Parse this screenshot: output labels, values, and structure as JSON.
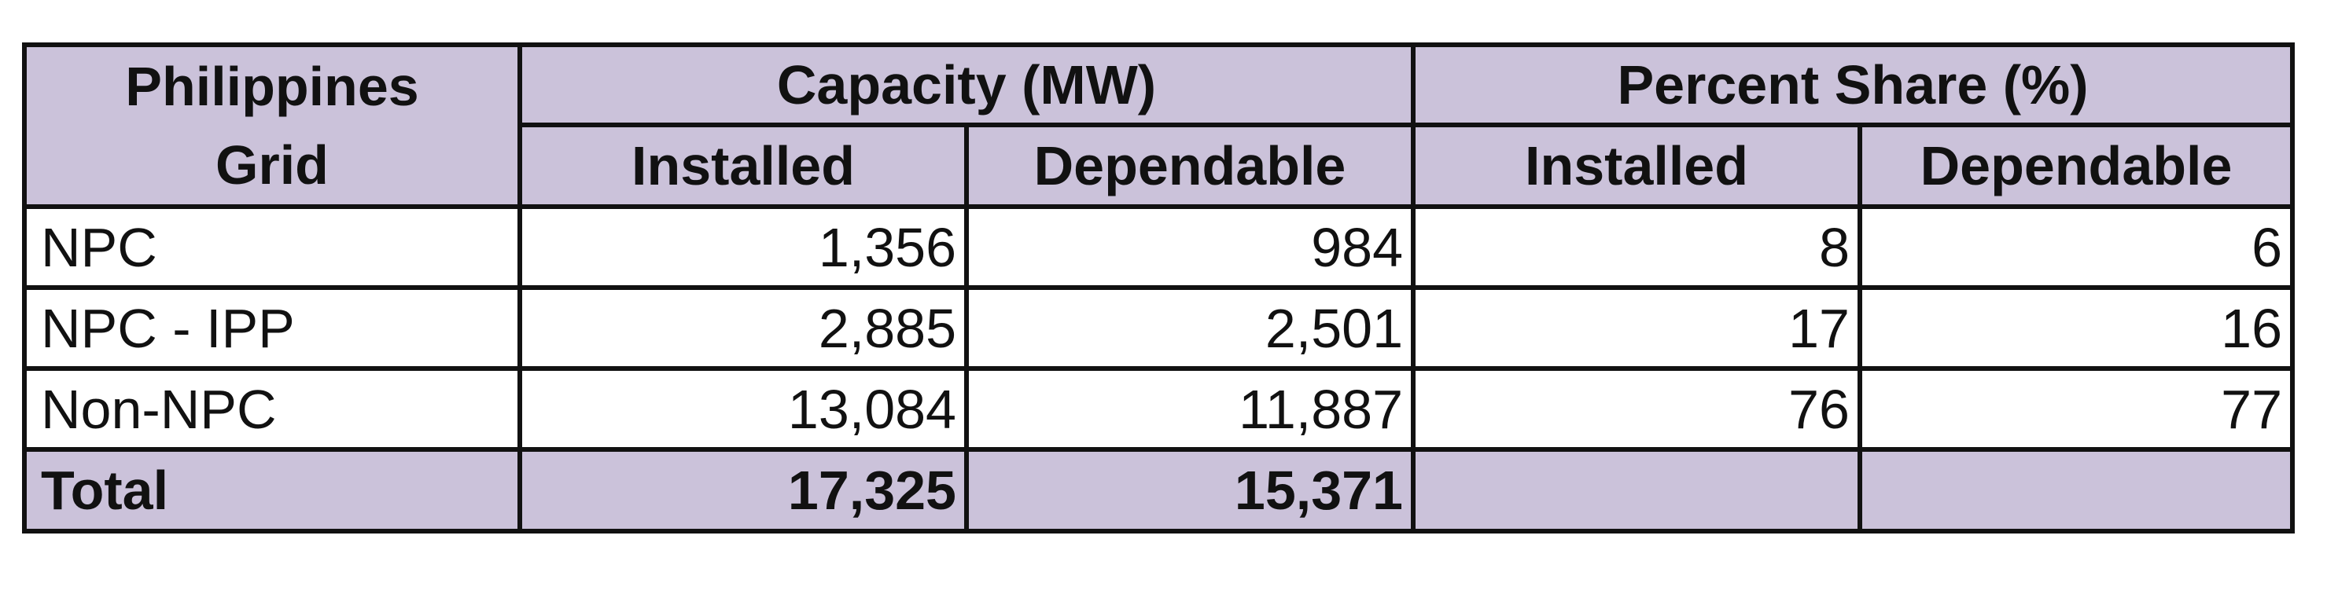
{
  "table": {
    "corner_label_line1": "Philippines",
    "corner_label_line2": "Grid",
    "group_headers": {
      "capacity": "Capacity (MW)",
      "percent_share": "Percent Share (%)"
    },
    "sub_headers": {
      "capacity_installed": "Installed",
      "capacity_dependable": "Dependable",
      "share_installed": "Installed",
      "share_dependable": "Dependable"
    },
    "rows": [
      {
        "label": "NPC",
        "capacity_installed": "1,356",
        "capacity_dependable": "984",
        "share_installed": "8",
        "share_dependable": "6"
      },
      {
        "label": "NPC - IPP",
        "capacity_installed": "2,885",
        "capacity_dependable": "2,501",
        "share_installed": "17",
        "share_dependable": "16"
      },
      {
        "label": "Non-NPC",
        "capacity_installed": "13,084",
        "capacity_dependable": "11,887",
        "share_installed": "76",
        "share_dependable": "77"
      }
    ],
    "total": {
      "label": "Total",
      "capacity_installed": "17,325",
      "capacity_dependable": "15,371",
      "share_installed": "",
      "share_dependable": ""
    }
  },
  "colors": {
    "header_fill": "#cbc2da",
    "border": "#111111",
    "body_fill": "#ffffff"
  }
}
